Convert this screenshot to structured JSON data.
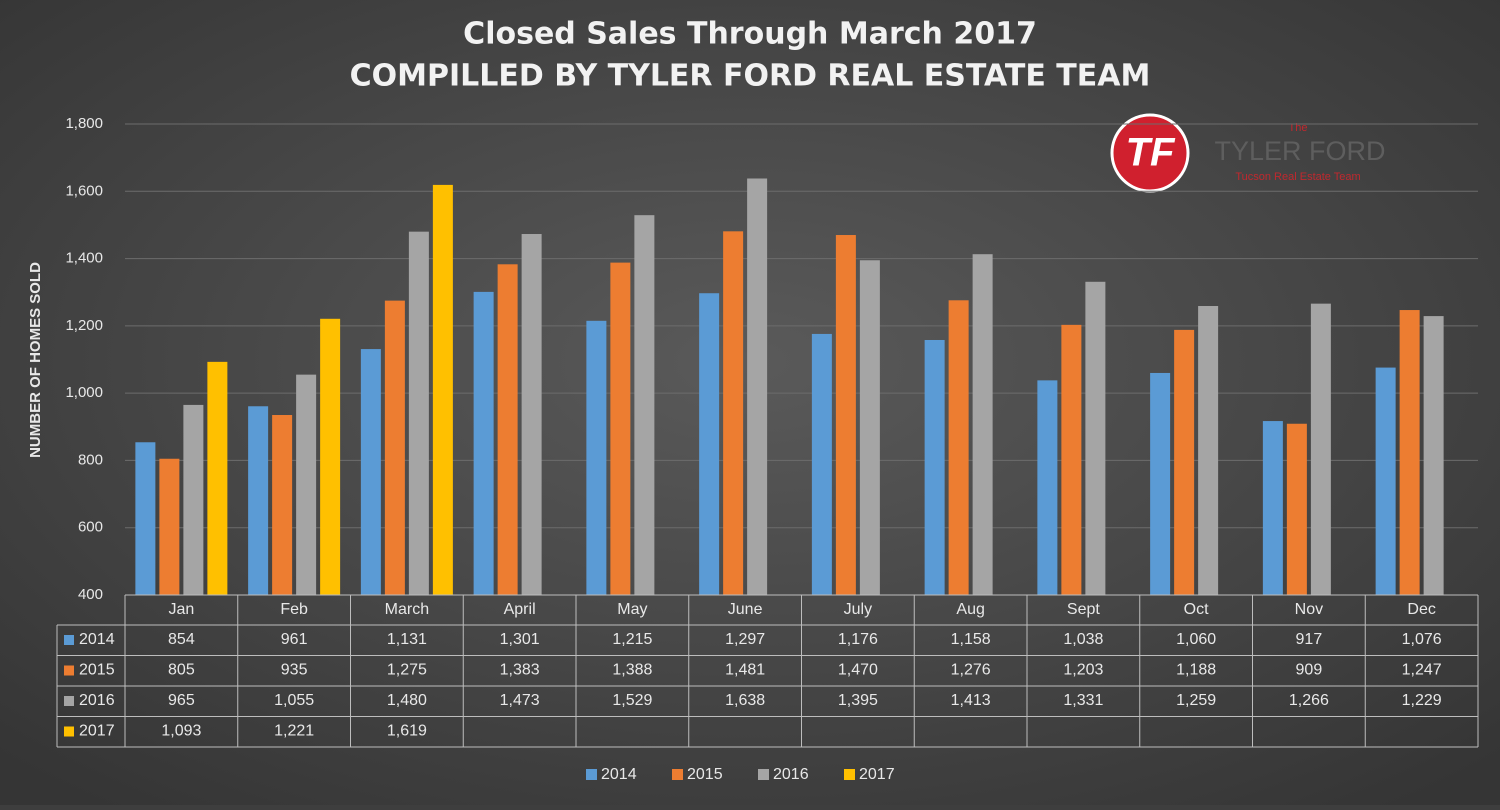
{
  "chart_data": {
    "type": "bar",
    "title": "Closed Sales Through March 2017",
    "subtitle": "COMPILLED BY TYLER FORD REAL ESTATE TEAM",
    "y_label": "NUMBER OF HOMES SOLD",
    "categories": [
      "Jan",
      "Feb",
      "March",
      "April",
      "May",
      "June",
      "July",
      "Aug",
      "Sept",
      "Oct",
      "Nov",
      "Dec"
    ],
    "series": [
      {
        "name": "2014",
        "color": "#5b9bd5",
        "values": [
          854,
          961,
          1131,
          1301,
          1215,
          1297,
          1176,
          1158,
          1038,
          1060,
          917,
          1076
        ],
        "value_labels": [
          "854",
          "961",
          "1,131",
          "1,301",
          "1,215",
          "1,297",
          "1,176",
          "1,158",
          "1,038",
          "1,060",
          "917",
          "1,076"
        ]
      },
      {
        "name": "2015",
        "color": "#ed7d31",
        "values": [
          805,
          935,
          1275,
          1383,
          1388,
          1481,
          1470,
          1276,
          1203,
          1188,
          909,
          1247
        ],
        "value_labels": [
          "805",
          "935",
          "1,275",
          "1,383",
          "1,388",
          "1,481",
          "1,470",
          "1,276",
          "1,203",
          "1,188",
          "909",
          "1,247"
        ]
      },
      {
        "name": "2016",
        "color": "#a5a5a5",
        "values": [
          965,
          1055,
          1480,
          1473,
          1529,
          1638,
          1395,
          1413,
          1331,
          1259,
          1266,
          1229
        ],
        "value_labels": [
          "965",
          "1,055",
          "1,480",
          "1,473",
          "1,529",
          "1,638",
          "1,395",
          "1,413",
          "1,331",
          "1,259",
          "1,266",
          "1,229"
        ]
      },
      {
        "name": "2017",
        "color": "#ffc000",
        "values": [
          1093,
          1221,
          1619,
          null,
          null,
          null,
          null,
          null,
          null,
          null,
          null,
          null
        ],
        "value_labels": [
          "1,093",
          "1,221",
          "1,619",
          null,
          null,
          null,
          null,
          null,
          null,
          null,
          null,
          null
        ]
      }
    ],
    "ylim": [
      400,
      1800
    ],
    "yticks": [
      400,
      600,
      800,
      {
        "value": 1000,
        "label": "1,000"
      },
      {
        "value": 1200,
        "label": "1,200"
      },
      {
        "value": 1400,
        "label": "1,400"
      },
      {
        "value": 1600,
        "label": "1,600"
      },
      {
        "value": 1800,
        "label": "1,800"
      }
    ],
    "grid": true,
    "legend": "bottom"
  },
  "logo": {
    "initials": "TF",
    "pre": "The",
    "name": "TYLER FORD",
    "tagline": "Tucson Real Estate Team"
  }
}
